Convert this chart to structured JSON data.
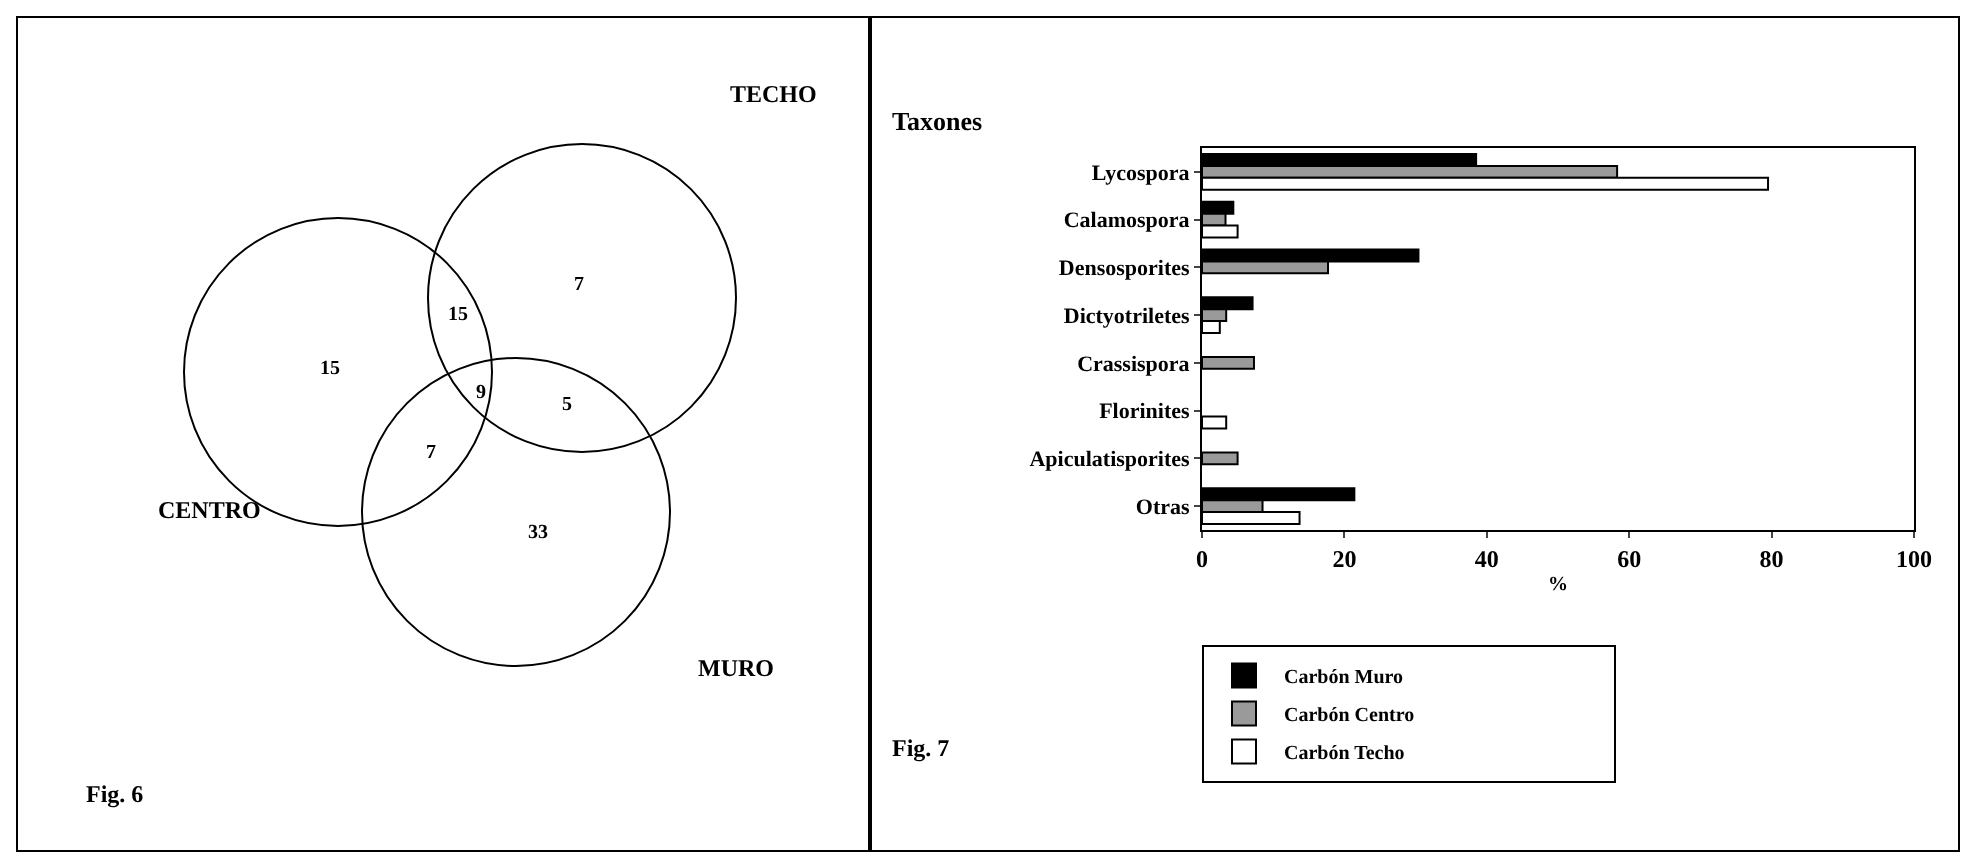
{
  "chart_data": [
    {
      "type": "other",
      "annotations": [
        "TECHO",
        "CENTRO",
        "MURO",
        "Fig. 6",
        "15",
        "15",
        "7",
        "9",
        "5",
        "7",
        "33"
      ]
    },
    {
      "type": "bar",
      "orientation": "horizontal",
      "ylabel": "Taxones",
      "xlabel": "%",
      "annotations": [
        "Fig. 7"
      ],
      "categories": [
        "Lycospora",
        "Calamospora",
        "Densosporites",
        "Dictyotriletes",
        "Crassispora",
        "Florinites",
        "Apiculatisporites",
        "Otras"
      ],
      "series": [
        {
          "name": "Carbón Muro",
          "color": "#000000",
          "values": [
            38.5,
            4.4,
            30.4,
            7.1,
            null,
            null,
            null,
            21.4
          ]
        },
        {
          "name": "Carbón Centro",
          "color": "#9a9a9a",
          "values": [
            58.3,
            3.3,
            17.7,
            3.4,
            7.3,
            null,
            5.0,
            8.5
          ]
        },
        {
          "name": "Carbón Techo",
          "color": "#ffffff",
          "values": [
            79.5,
            5.0,
            null,
            2.5,
            null,
            3.4,
            null,
            13.7
          ]
        }
      ],
      "xlim": [
        0,
        100
      ],
      "xticks": [
        0,
        20,
        40,
        60,
        80,
        100
      ],
      "grid": false,
      "legend": "bottom"
    }
  ]
}
